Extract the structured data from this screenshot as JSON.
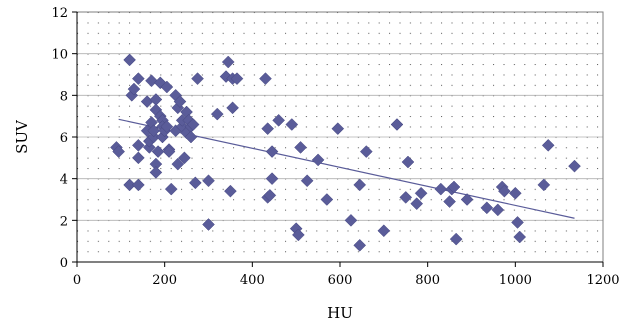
{
  "chart_data": {
    "type": "scatter",
    "xlabel": "HU",
    "ylabel": "SUV",
    "xlim": [
      0,
      1200
    ],
    "ylim": [
      0,
      12
    ],
    "x_ticks": [
      "0",
      "200",
      "400",
      "600",
      "800",
      "1000",
      "1200"
    ],
    "y_ticks": [
      "0",
      "2",
      "4",
      "6",
      "8",
      "10",
      "12"
    ],
    "grid": "dotted",
    "legend": "none",
    "marker": "diamond",
    "marker_color": "#5A5C99",
    "trendline": {
      "type": "linear",
      "x": [
        95,
        1135
      ],
      "y": [
        6.85,
        2.1
      ]
    },
    "points": [
      [
        90,
        5.5
      ],
      [
        95,
        5.3
      ],
      [
        120,
        9.7
      ],
      [
        120,
        3.7
      ],
      [
        125,
        8.0
      ],
      [
        130,
        8.3
      ],
      [
        140,
        8.8
      ],
      [
        140,
        3.7
      ],
      [
        140,
        5.0
      ],
      [
        140,
        5.6
      ],
      [
        160,
        7.7
      ],
      [
        160,
        6.3
      ],
      [
        165,
        5.5
      ],
      [
        165,
        5.8
      ],
      [
        170,
        8.7
      ],
      [
        170,
        6.7
      ],
      [
        175,
        6.0
      ],
      [
        175,
        6.3
      ],
      [
        180,
        7.8
      ],
      [
        180,
        7.3
      ],
      [
        180,
        4.7
      ],
      [
        180,
        4.3
      ],
      [
        185,
        5.3
      ],
      [
        190,
        8.6
      ],
      [
        190,
        7.0
      ],
      [
        195,
        6.8
      ],
      [
        195,
        6.5
      ],
      [
        195,
        6.0
      ],
      [
        200,
        6.3
      ],
      [
        205,
        8.4
      ],
      [
        205,
        6.5
      ],
      [
        210,
        5.4
      ],
      [
        210,
        5.3
      ],
      [
        215,
        3.5
      ],
      [
        225,
        8.0
      ],
      [
        225,
        6.3
      ],
      [
        230,
        7.4
      ],
      [
        230,
        4.7
      ],
      [
        235,
        7.7
      ],
      [
        240,
        6.5
      ],
      [
        240,
        6.8
      ],
      [
        245,
        5.0
      ],
      [
        250,
        7.2
      ],
      [
        250,
        6.2
      ],
      [
        255,
        6.8
      ],
      [
        260,
        6.5
      ],
      [
        260,
        6.0
      ],
      [
        265,
        6.6
      ],
      [
        270,
        3.8
      ],
      [
        275,
        8.8
      ],
      [
        300,
        3.9
      ],
      [
        300,
        1.8
      ],
      [
        320,
        7.1
      ],
      [
        340,
        8.9
      ],
      [
        345,
        9.6
      ],
      [
        350,
        3.4
      ],
      [
        355,
        7.4
      ],
      [
        355,
        8.8
      ],
      [
        365,
        8.8
      ],
      [
        430,
        8.8
      ],
      [
        435,
        6.4
      ],
      [
        435,
        3.1
      ],
      [
        440,
        3.2
      ],
      [
        445,
        5.3
      ],
      [
        445,
        4.0
      ],
      [
        460,
        6.8
      ],
      [
        490,
        6.6
      ],
      [
        500,
        1.6
      ],
      [
        505,
        1.3
      ],
      [
        510,
        5.5
      ],
      [
        525,
        3.9
      ],
      [
        550,
        4.9
      ],
      [
        570,
        3.0
      ],
      [
        595,
        6.4
      ],
      [
        625,
        2.0
      ],
      [
        645,
        0.8
      ],
      [
        645,
        3.7
      ],
      [
        660,
        5.3
      ],
      [
        700,
        1.5
      ],
      [
        730,
        6.6
      ],
      [
        750,
        3.1
      ],
      [
        755,
        4.8
      ],
      [
        775,
        2.8
      ],
      [
        785,
        3.3
      ],
      [
        830,
        3.5
      ],
      [
        850,
        2.9
      ],
      [
        855,
        3.5
      ],
      [
        860,
        3.6
      ],
      [
        865,
        1.1
      ],
      [
        890,
        3.0
      ],
      [
        935,
        2.6
      ],
      [
        960,
        2.5
      ],
      [
        970,
        3.6
      ],
      [
        975,
        3.4
      ],
      [
        1000,
        3.3
      ],
      [
        1005,
        1.9
      ],
      [
        1010,
        1.2
      ],
      [
        1065,
        3.7
      ],
      [
        1075,
        5.6
      ],
      [
        1135,
        4.6
      ]
    ]
  }
}
